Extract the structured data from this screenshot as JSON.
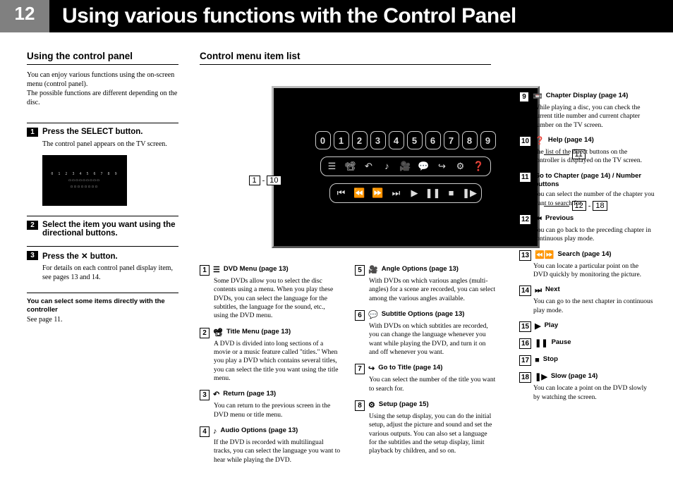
{
  "page_number": "12",
  "main_title": "Using various functions with the Control Panel",
  "left": {
    "section_title": "Using the control panel",
    "intro": "You can enjoy various functions using the on-screen menu (control panel).\nThe possible functions are different depending on the disc.",
    "step1_num": "1",
    "step1_title": "Press the SELECT button.",
    "step1_body": "The control panel appears on the TV screen.",
    "step2_num": "2",
    "step2_title": "Select the item you want using the directional buttons.",
    "step3_num": "3",
    "step3_title": "Press the ✕ button.",
    "step3_body": "For details on each control panel display item, see pages 13 and 14.",
    "note_title": "You can select some items directly with the controller",
    "note_body": "See page 11."
  },
  "center": {
    "section_title": "Control menu item list",
    "numbers": [
      "0",
      "1",
      "2",
      "3",
      "4",
      "5",
      "6",
      "7",
      "8",
      "9"
    ],
    "row2_icons": [
      "☰",
      "📽",
      "↶",
      "♪",
      "🎥",
      "💬",
      "↪",
      "⚙",
      "❓"
    ],
    "row3_icons": [
      "⏮",
      "⏪",
      "⏩",
      "⏭",
      "▶",
      "❚❚",
      "■",
      "❚▶"
    ],
    "callout_left_a": "1",
    "callout_left_b": "10",
    "callout_right_top": "11",
    "callout_right_a": "12",
    "callout_right_b": "18"
  },
  "items_col1": [
    {
      "n": "1",
      "sym": "☰",
      "t": "DVD Menu (page 13)",
      "b": "Some DVDs allow you to select the disc contents using a menu. When you play these DVDs, you can select the language for the subtitles, the language for the sound, etc., using the DVD menu."
    },
    {
      "n": "2",
      "sym": "📽",
      "t": "Title Menu (page 13)",
      "b": "A DVD is divided into long sections of a movie or a music feature called \"titles.\" When you play a DVD which contains several titles, you can select the title you want using the title menu."
    },
    {
      "n": "3",
      "sym": "↶",
      "t": "Return (page 13)",
      "b": "You can return to the previous screen in the DVD menu or title menu."
    },
    {
      "n": "4",
      "sym": "♪",
      "t": "Audio Options (page 13)",
      "b": "If the DVD is recorded with multilingual tracks, you can select the language you want to hear while playing the DVD."
    }
  ],
  "items_col2": [
    {
      "n": "5",
      "sym": "🎥",
      "t": "Angle Options (page 13)",
      "b": "With DVDs on which various angles (multi-angles) for a scene are recorded, you can select among the various angles available."
    },
    {
      "n": "6",
      "sym": "💬",
      "t": "Subtitle Options (page 13)",
      "b": "With DVDs on which subtitles are recorded, you can change the language whenever you want while playing the DVD, and turn it on and off whenever you want."
    },
    {
      "n": "7",
      "sym": "↪",
      "t": "Go to Title (page 14)",
      "b": "You can select the number of the title you want to search for."
    },
    {
      "n": "8",
      "sym": "⚙",
      "t": "Setup (page 15)",
      "b": "Using the setup display, you can do the initial setup, adjust the picture and sound and set the various outputs. You can also set a language for the subtitles and the setup display, limit playback by children, and so on."
    }
  ],
  "items_col3": [
    {
      "n": "9",
      "sym": "📼",
      "t": "Chapter Display (page 14)",
      "b": "While playing a disc, you can check the current title number and current chapter number on the TV screen."
    },
    {
      "n": "10",
      "sym": "❓",
      "t": "Help (page 14)",
      "b": "The list of the direct buttons on the controller is displayed on the TV screen."
    },
    {
      "n": "11",
      "sym": "",
      "t": "Go to Chapter (page 14) / Number buttons",
      "b": "You can select the number of the chapter you want to search for."
    },
    {
      "n": "12",
      "sym": "⏮",
      "t": "Previous",
      "b": "You can go back to the preceding chapter in continuous play mode."
    },
    {
      "n": "13",
      "sym": "⏪⏩",
      "t": "Search (page 14)",
      "b": "You can locate a particular point on the DVD quickly by monitoring the picture."
    },
    {
      "n": "14",
      "sym": "⏭",
      "t": "Next",
      "b": "You can go to the next chapter in continuous play mode."
    },
    {
      "n": "15",
      "sym": "▶",
      "t": "Play",
      "b": ""
    },
    {
      "n": "16",
      "sym": "❚❚",
      "t": "Pause",
      "b": ""
    },
    {
      "n": "17",
      "sym": "■",
      "t": "Stop",
      "b": ""
    },
    {
      "n": "18",
      "sym": "❚▶",
      "t": "Slow (page 14)",
      "b": "You can locate a point on the DVD slowly by watching the screen."
    }
  ]
}
